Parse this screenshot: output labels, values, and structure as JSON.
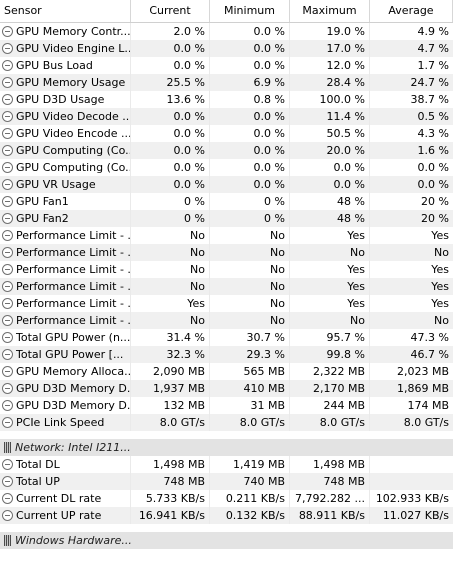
{
  "columns": [
    "Sensor",
    "Current",
    "Minimum",
    "Maximum",
    "Average"
  ],
  "gpu_rows": [
    {
      "name": "GPU Memory Contr...",
      "current": "2.0 %",
      "minimum": "0.0 %",
      "maximum": "19.0 %",
      "average": "4.9 %"
    },
    {
      "name": "GPU Video Engine L...",
      "current": "0.0 %",
      "minimum": "0.0 %",
      "maximum": "17.0 %",
      "average": "4.7 %"
    },
    {
      "name": "GPU Bus Load",
      "current": "0.0 %",
      "minimum": "0.0 %",
      "maximum": "12.0 %",
      "average": "1.7 %"
    },
    {
      "name": "GPU Memory Usage",
      "current": "25.5 %",
      "minimum": "6.9 %",
      "maximum": "28.4 %",
      "average": "24.7 %"
    },
    {
      "name": "GPU D3D Usage",
      "current": "13.6 %",
      "minimum": "0.8 %",
      "maximum": "100.0 %",
      "average": "38.7 %"
    },
    {
      "name": "GPU Video Decode ...",
      "current": "0.0 %",
      "minimum": "0.0 %",
      "maximum": "11.4 %",
      "average": "0.5 %"
    },
    {
      "name": "GPU Video Encode ...",
      "current": "0.0 %",
      "minimum": "0.0 %",
      "maximum": "50.5 %",
      "average": "4.3 %"
    },
    {
      "name": "GPU Computing (Co...",
      "current": "0.0 %",
      "minimum": "0.0 %",
      "maximum": "20.0 %",
      "average": "1.6 %"
    },
    {
      "name": "GPU Computing (Co...",
      "current": "0.0 %",
      "minimum": "0.0 %",
      "maximum": "0.0 %",
      "average": "0.0 %"
    },
    {
      "name": "GPU VR Usage",
      "current": "0.0 %",
      "minimum": "0.0 %",
      "maximum": "0.0 %",
      "average": "0.0 %"
    },
    {
      "name": "GPU Fan1",
      "current": "0 %",
      "minimum": "0 %",
      "maximum": "48 %",
      "average": "20 %"
    },
    {
      "name": "GPU Fan2",
      "current": "0 %",
      "minimum": "0 %",
      "maximum": "48 %",
      "average": "20 %"
    },
    {
      "name": "Performance Limit - ...",
      "current": "No",
      "minimum": "No",
      "maximum": "Yes",
      "average": "Yes"
    },
    {
      "name": "Performance Limit - ...",
      "current": "No",
      "minimum": "No",
      "maximum": "No",
      "average": "No"
    },
    {
      "name": "Performance Limit - ...",
      "current": "No",
      "minimum": "No",
      "maximum": "Yes",
      "average": "Yes"
    },
    {
      "name": "Performance Limit - ...",
      "current": "No",
      "minimum": "No",
      "maximum": "Yes",
      "average": "Yes"
    },
    {
      "name": "Performance Limit - ...",
      "current": "Yes",
      "minimum": "No",
      "maximum": "Yes",
      "average": "Yes"
    },
    {
      "name": "Performance Limit - ...",
      "current": "No",
      "minimum": "No",
      "maximum": "No",
      "average": "No"
    },
    {
      "name": "Total GPU Power (n...",
      "current": "31.4 %",
      "minimum": "30.7 %",
      "maximum": "95.7 %",
      "average": "47.3 %"
    },
    {
      "name": "Total GPU Power [...",
      "current": "32.3 %",
      "minimum": "29.3 %",
      "maximum": "99.8 %",
      "average": "46.7 %"
    },
    {
      "name": "GPU Memory Alloca...",
      "current": "2,090 MB",
      "minimum": "565 MB",
      "maximum": "2,322 MB",
      "average": "2,023 MB"
    },
    {
      "name": "GPU D3D Memory D...",
      "current": "1,937 MB",
      "minimum": "410 MB",
      "maximum": "2,170 MB",
      "average": "1,869 MB"
    },
    {
      "name": "GPU D3D Memory D...",
      "current": "132 MB",
      "minimum": "31 MB",
      "maximum": "244 MB",
      "average": "174 MB"
    },
    {
      "name": "PCIe Link Speed",
      "current": "8.0 GT/s",
      "minimum": "8.0 GT/s",
      "maximum": "8.0 GT/s",
      "average": "8.0 GT/s"
    }
  ],
  "network_group": {
    "label": "Network: Intel I211..."
  },
  "network_rows": [
    {
      "name": "Total DL",
      "current": "1,498 MB",
      "minimum": "1,419 MB",
      "maximum": "1,498 MB",
      "average": ""
    },
    {
      "name": "Total UP",
      "current": "748 MB",
      "minimum": "740 MB",
      "maximum": "748 MB",
      "average": ""
    },
    {
      "name": "Current DL rate",
      "current": "5.733 KB/s",
      "minimum": "0.211 KB/s",
      "maximum": "7,792.282 ...",
      "average": "102.933 KB/s"
    },
    {
      "name": "Current UP rate",
      "current": "16.941 KB/s",
      "minimum": "0.132 KB/s",
      "maximum": "88.911 KB/s",
      "average": "11.027 KB/s"
    }
  ],
  "windows_group": {
    "label": "Windows Hardware..."
  }
}
